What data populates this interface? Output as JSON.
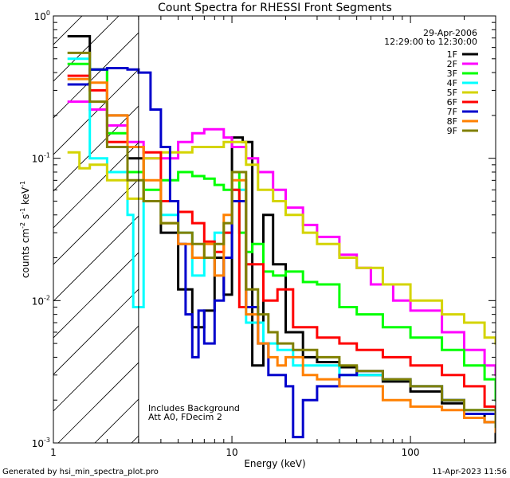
{
  "chart_data": {
    "type": "line",
    "title": "Count Spectra for RHESSI Front Segments",
    "xlabel": "Energy (keV)",
    "ylabel_parts": {
      "main": "counts cm",
      "exp1": "-2",
      "s": " s",
      "exp2": "-1",
      "kev": " keV",
      "exp3": "-1"
    },
    "x_scale": "log",
    "y_scale": "log",
    "xlim": [
      1,
      300
    ],
    "ylim": [
      0.001,
      1
    ],
    "x_ticks": [
      {
        "value": 1,
        "label": "1"
      },
      {
        "value": 10,
        "label": "10"
      },
      {
        "value": 100,
        "label": "100"
      }
    ],
    "y_ticks": [
      {
        "value": 1,
        "base": "10",
        "exp": "0"
      },
      {
        "value": 0.1,
        "base": "10",
        "exp": "-1"
      },
      {
        "value": 0.01,
        "base": "10",
        "exp": "-2"
      },
      {
        "value": 0.001,
        "base": "10",
        "exp": "-3"
      }
    ],
    "date": "29-Apr-2006",
    "time_range": "12:29:00 to 12:30:00",
    "hatch_region_max_kev": 3,
    "annotations": [
      "Includes Background",
      "Att A0, FDecim 2"
    ],
    "footer_left": "Generated by hsi_min_spectra_plot.pro",
    "footer_right": "11-Apr-2023 11:56",
    "series": [
      {
        "name": "1F",
        "color": "#000000",
        "points": [
          [
            1.2,
            0.72
          ],
          [
            1.6,
            0.42
          ],
          [
            2.0,
            0.2
          ],
          [
            2.6,
            0.1
          ],
          [
            3.2,
            0.05
          ],
          [
            4.0,
            0.03
          ],
          [
            5.0,
            0.012
          ],
          [
            6.0,
            0.0065
          ],
          [
            7.0,
            0.0085
          ],
          [
            8.0,
            0.02
          ],
          [
            9.0,
            0.011
          ],
          [
            10.0,
            0.14
          ],
          [
            11.5,
            0.13
          ],
          [
            13.0,
            0.0035
          ],
          [
            15.0,
            0.04
          ],
          [
            17.0,
            0.018
          ],
          [
            20.0,
            0.006
          ],
          [
            25.0,
            0.004
          ],
          [
            30.0,
            0.0037
          ],
          [
            40.0,
            0.0034
          ],
          [
            50.0,
            0.003
          ],
          [
            70.0,
            0.0027
          ],
          [
            100.0,
            0.0023
          ],
          [
            150.0,
            0.0019
          ],
          [
            200.0,
            0.0016
          ],
          [
            260.0,
            0.0014
          ],
          [
            300.0,
            0.001
          ]
        ]
      },
      {
        "name": "2F",
        "color": "#ff00ff",
        "points": [
          [
            1.2,
            0.25
          ],
          [
            1.6,
            0.22
          ],
          [
            2.0,
            0.17
          ],
          [
            2.6,
            0.13
          ],
          [
            3.2,
            0.1
          ],
          [
            4.0,
            0.1
          ],
          [
            5.0,
            0.13
          ],
          [
            6.0,
            0.15
          ],
          [
            7.0,
            0.16
          ],
          [
            8.0,
            0.16
          ],
          [
            9.0,
            0.14
          ],
          [
            10.0,
            0.12
          ],
          [
            12.0,
            0.1
          ],
          [
            14.0,
            0.08
          ],
          [
            17.0,
            0.06
          ],
          [
            20.0,
            0.045
          ],
          [
            25.0,
            0.034
          ],
          [
            30.0,
            0.028
          ],
          [
            40.0,
            0.021
          ],
          [
            50.0,
            0.017
          ],
          [
            60.0,
            0.013
          ],
          [
            80.0,
            0.01
          ],
          [
            100.0,
            0.0085
          ],
          [
            150.0,
            0.006
          ],
          [
            200.0,
            0.0045
          ],
          [
            260.0,
            0.0035
          ],
          [
            300.0,
            0.003
          ]
        ]
      },
      {
        "name": "3F",
        "color": "#00ff00",
        "points": [
          [
            1.2,
            0.46
          ],
          [
            1.6,
            0.42
          ],
          [
            2.0,
            0.15
          ],
          [
            2.6,
            0.08
          ],
          [
            3.2,
            0.06
          ],
          [
            4.0,
            0.07
          ],
          [
            5.0,
            0.08
          ],
          [
            6.0,
            0.075
          ],
          [
            7.0,
            0.072
          ],
          [
            8.0,
            0.065
          ],
          [
            9.0,
            0.06
          ],
          [
            10.0,
            0.08
          ],
          [
            11.0,
            0.03
          ],
          [
            12.0,
            0.022
          ],
          [
            13.0,
            0.025
          ],
          [
            15.0,
            0.016
          ],
          [
            17.0,
            0.015
          ],
          [
            20.0,
            0.016
          ],
          [
            25.0,
            0.0135
          ],
          [
            30.0,
            0.013
          ],
          [
            40.0,
            0.009
          ],
          [
            50.0,
            0.008
          ],
          [
            70.0,
            0.0065
          ],
          [
            100.0,
            0.0055
          ],
          [
            150.0,
            0.0045
          ],
          [
            200.0,
            0.0035
          ],
          [
            260.0,
            0.0028
          ],
          [
            300.0,
            0.002
          ]
        ]
      },
      {
        "name": "4F",
        "color": "#00ffff",
        "points": [
          [
            1.2,
            0.5
          ],
          [
            1.6,
            0.1
          ],
          [
            2.0,
            0.08
          ],
          [
            2.6,
            0.04
          ],
          [
            2.8,
            0.009
          ],
          [
            3.2,
            0.05
          ],
          [
            4.0,
            0.04
          ],
          [
            5.0,
            0.03
          ],
          [
            6.0,
            0.015
          ],
          [
            7.0,
            0.02
          ],
          [
            8.0,
            0.03
          ],
          [
            10.0,
            0.06
          ],
          [
            12.0,
            0.007
          ],
          [
            15.0,
            0.005
          ],
          [
            18.0,
            0.0045
          ],
          [
            22.0,
            0.0035
          ],
          [
            30.0,
            0.0035
          ],
          [
            40.0,
            0.003
          ],
          [
            50.0,
            0.003
          ],
          [
            70.0,
            0.0028
          ],
          [
            100.0,
            0.0025
          ],
          [
            150.0,
            0.002
          ],
          [
            200.0,
            0.0017
          ],
          [
            300.0,
            0.0013
          ]
        ]
      },
      {
        "name": "5F",
        "color": "#d4d400",
        "points": [
          [
            1.2,
            0.11
          ],
          [
            1.4,
            0.085
          ],
          [
            1.6,
            0.09
          ],
          [
            2.0,
            0.07
          ],
          [
            2.6,
            0.052
          ],
          [
            3.2,
            0.1
          ],
          [
            4.0,
            0.11
          ],
          [
            5.0,
            0.11
          ],
          [
            6.0,
            0.12
          ],
          [
            7.0,
            0.12
          ],
          [
            8.0,
            0.12
          ],
          [
            9.0,
            0.13
          ],
          [
            10.0,
            0.13
          ],
          [
            12.0,
            0.09
          ],
          [
            14.0,
            0.06
          ],
          [
            17.0,
            0.05
          ],
          [
            20.0,
            0.04
          ],
          [
            25.0,
            0.03
          ],
          [
            30.0,
            0.025
          ],
          [
            40.0,
            0.02
          ],
          [
            50.0,
            0.017
          ],
          [
            70.0,
            0.013
          ],
          [
            100.0,
            0.01
          ],
          [
            150.0,
            0.008
          ],
          [
            200.0,
            0.007
          ],
          [
            260.0,
            0.0055
          ],
          [
            300.0,
            0.005
          ]
        ]
      },
      {
        "name": "6F",
        "color": "#ff0000",
        "points": [
          [
            1.2,
            0.38
          ],
          [
            1.6,
            0.3
          ],
          [
            2.0,
            0.13
          ],
          [
            2.6,
            0.12
          ],
          [
            3.2,
            0.11
          ],
          [
            4.0,
            0.05
          ],
          [
            5.0,
            0.042
          ],
          [
            6.0,
            0.035
          ],
          [
            7.0,
            0.026
          ],
          [
            8.0,
            0.022
          ],
          [
            9.0,
            0.03
          ],
          [
            10.0,
            0.06
          ],
          [
            11.0,
            0.009
          ],
          [
            12.0,
            0.018
          ],
          [
            15.0,
            0.01
          ],
          [
            18.0,
            0.012
          ],
          [
            22.0,
            0.0065
          ],
          [
            30.0,
            0.0055
          ],
          [
            40.0,
            0.005
          ],
          [
            50.0,
            0.0045
          ],
          [
            70.0,
            0.004
          ],
          [
            100.0,
            0.0035
          ],
          [
            150.0,
            0.003
          ],
          [
            200.0,
            0.0025
          ],
          [
            260.0,
            0.0018
          ],
          [
            300.0,
            0.0015
          ]
        ]
      },
      {
        "name": "7F",
        "color": "#0000cc",
        "points": [
          [
            1.2,
            0.33
          ],
          [
            1.4,
            0.33
          ],
          [
            1.6,
            0.42
          ],
          [
            2.0,
            0.43
          ],
          [
            2.6,
            0.42
          ],
          [
            3.0,
            0.4
          ],
          [
            3.5,
            0.22
          ],
          [
            4.0,
            0.12
          ],
          [
            4.5,
            0.05
          ],
          [
            5.0,
            0.025
          ],
          [
            5.5,
            0.008
          ],
          [
            6.0,
            0.004
          ],
          [
            6.5,
            0.0085
          ],
          [
            7.0,
            0.005
          ],
          [
            8.0,
            0.01
          ],
          [
            9.0,
            0.02
          ],
          [
            10.0,
            0.05
          ],
          [
            12.0,
            0.009
          ],
          [
            14.0,
            0.005
          ],
          [
            16.0,
            0.003
          ],
          [
            20.0,
            0.0025
          ],
          [
            22.0,
            0.0011
          ],
          [
            25.0,
            0.002
          ],
          [
            30.0,
            0.0025
          ],
          [
            40.0,
            0.003
          ],
          [
            50.0,
            0.0032
          ],
          [
            70.0,
            0.0028
          ],
          [
            100.0,
            0.0025
          ],
          [
            150.0,
            0.002
          ],
          [
            200.0,
            0.0016
          ],
          [
            300.0,
            0.0012
          ]
        ]
      },
      {
        "name": "8F",
        "color": "#ff8000",
        "points": [
          [
            1.2,
            0.36
          ],
          [
            1.6,
            0.34
          ],
          [
            2.0,
            0.2
          ],
          [
            2.6,
            0.12
          ],
          [
            3.2,
            0.07
          ],
          [
            4.0,
            0.035
          ],
          [
            5.0,
            0.025
          ],
          [
            6.0,
            0.02
          ],
          [
            7.0,
            0.025
          ],
          [
            8.0,
            0.015
          ],
          [
            9.0,
            0.04
          ],
          [
            10.0,
            0.07
          ],
          [
            12.0,
            0.008
          ],
          [
            14.0,
            0.005
          ],
          [
            16.0,
            0.004
          ],
          [
            18.0,
            0.0035
          ],
          [
            20.0,
            0.004
          ],
          [
            25.0,
            0.003
          ],
          [
            30.0,
            0.0028
          ],
          [
            40.0,
            0.0025
          ],
          [
            50.0,
            0.0025
          ],
          [
            70.0,
            0.002
          ],
          [
            100.0,
            0.0018
          ],
          [
            150.0,
            0.0017
          ],
          [
            200.0,
            0.0015
          ],
          [
            260.0,
            0.0014
          ],
          [
            300.0,
            0.0012
          ]
        ]
      },
      {
        "name": "9F",
        "color": "#808000",
        "points": [
          [
            1.2,
            0.55
          ],
          [
            1.6,
            0.25
          ],
          [
            2.0,
            0.12
          ],
          [
            2.6,
            0.07
          ],
          [
            3.2,
            0.05
          ],
          [
            4.0,
            0.035
          ],
          [
            5.0,
            0.03
          ],
          [
            6.0,
            0.025
          ],
          [
            7.0,
            0.02
          ],
          [
            8.0,
            0.025
          ],
          [
            9.0,
            0.035
          ],
          [
            10.0,
            0.08
          ],
          [
            12.0,
            0.012
          ],
          [
            14.0,
            0.008
          ],
          [
            16.0,
            0.006
          ],
          [
            18.0,
            0.005
          ],
          [
            22.0,
            0.0045
          ],
          [
            25.0,
            0.0045
          ],
          [
            30.0,
            0.004
          ],
          [
            40.0,
            0.0035
          ],
          [
            50.0,
            0.0032
          ],
          [
            70.0,
            0.0028
          ],
          [
            100.0,
            0.0025
          ],
          [
            150.0,
            0.002
          ],
          [
            200.0,
            0.0017
          ],
          [
            300.0,
            0.0013
          ]
        ]
      }
    ]
  }
}
